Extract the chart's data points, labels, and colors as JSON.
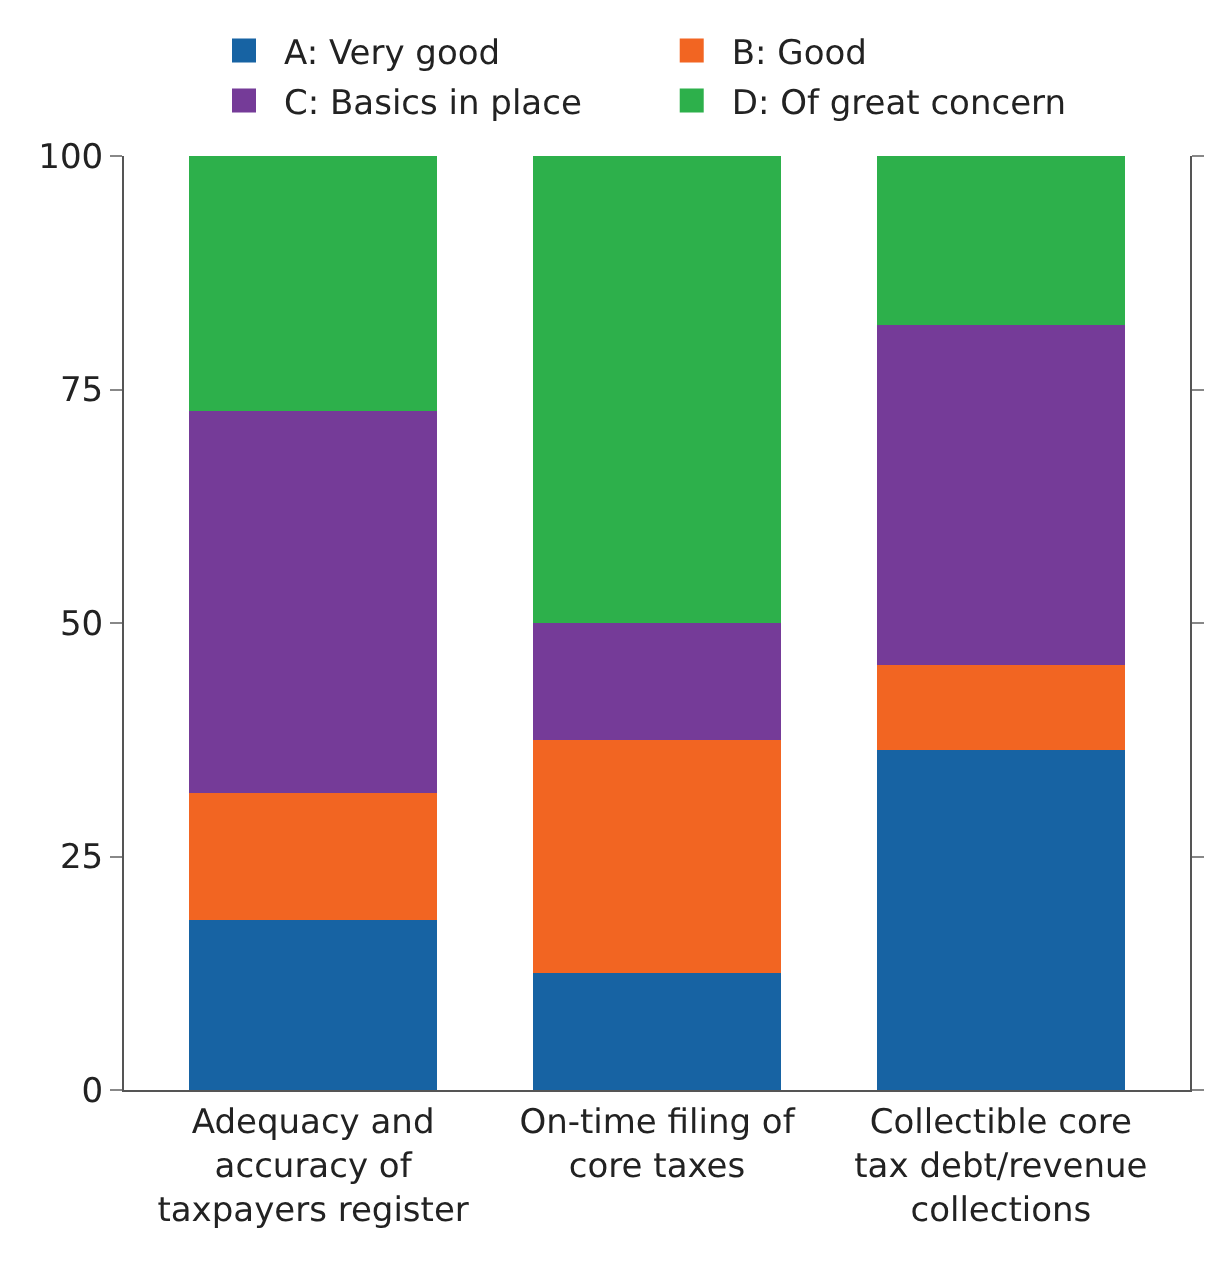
{
  "chart_data": {
    "type": "bar",
    "stacked": true,
    "categories": [
      "Adequacy and accuracy of taxpayers register",
      "On-time filing of core taxes",
      "Collectible core tax debt/revenue collections"
    ],
    "series": [
      {
        "name": "A: Very good",
        "color": "#1763a3",
        "values": [
          18.2,
          12.5,
          36.4
        ]
      },
      {
        "name": "B: Good",
        "color": "#f26522",
        "values": [
          13.6,
          25,
          9.1
        ]
      },
      {
        "name": "C: Basics in place",
        "color": "#753b98",
        "values": [
          40.9,
          12.5,
          36.4
        ]
      },
      {
        "name": "D: Of great concern",
        "color": "#2db04b",
        "values": [
          27.3,
          50,
          18.2
        ]
      }
    ],
    "ylim": [
      0,
      100
    ],
    "yticks": [
      0,
      25,
      50,
      75,
      100
    ],
    "legend": "top"
  }
}
